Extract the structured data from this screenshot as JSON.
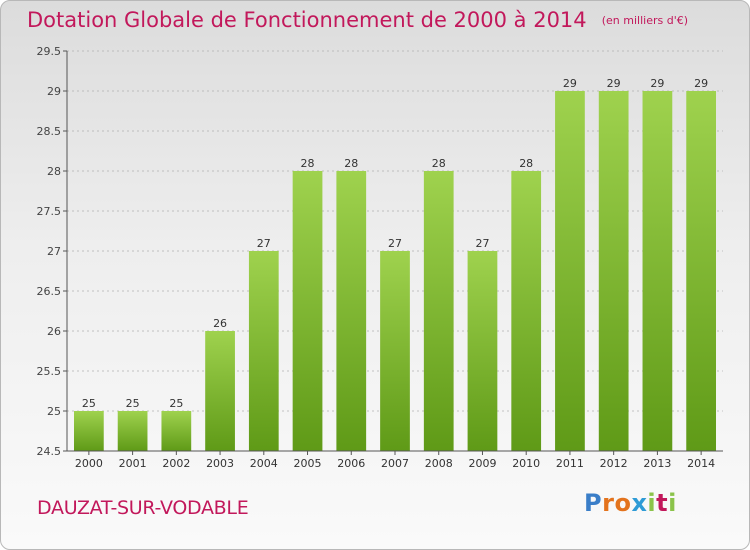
{
  "title": "Dotation Globale de Fonctionnement de 2000 à 2014",
  "unit": "(en milliers d'€)",
  "commune": "DAUZAT-SUR-VODABLE",
  "logo": {
    "letters": [
      "P",
      "r",
      "o",
      "x",
      "i",
      "t",
      "i"
    ],
    "colors": [
      "#3a7ec8",
      "#e3731d",
      "#e3731d",
      "#2e9bd6",
      "#8bc34a",
      "#c2185b",
      "#8bc34a"
    ]
  },
  "colors": {
    "accent": "#c2185b",
    "bar_top": "#9fd24e",
    "bar_bottom": "#5f9a17",
    "grid": "#b0b0b0",
    "axis": "#555555"
  },
  "chart_data": {
    "type": "bar",
    "title": "Dotation Globale de Fonctionnement de 2000 à 2014",
    "xlabel": "",
    "ylabel": "",
    "categories": [
      "2000",
      "2001",
      "2002",
      "2003",
      "2004",
      "2005",
      "2006",
      "2007",
      "2008",
      "2009",
      "2010",
      "2011",
      "2012",
      "2013",
      "2014"
    ],
    "values": [
      25,
      25,
      25,
      26,
      27,
      28,
      28,
      27,
      28,
      27,
      28,
      29,
      29,
      29,
      29
    ],
    "ylim": [
      24.5,
      29.5
    ],
    "yticks": [
      24.5,
      25,
      25.5,
      26,
      26.5,
      27,
      27.5,
      28,
      28.5,
      29,
      29.5
    ],
    "ytick_labels": [
      "24.5",
      "25",
      "25.5",
      "26",
      "26.5",
      "27",
      "27.5",
      "28",
      "28.5",
      "29",
      "29.5"
    ],
    "grid": true,
    "data_labels": true
  }
}
